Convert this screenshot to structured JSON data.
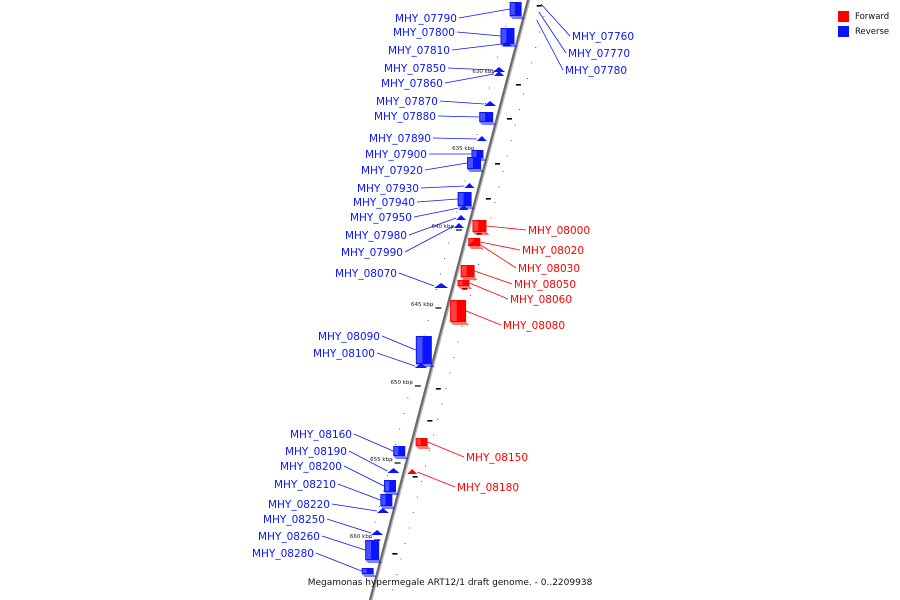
{
  "legend": {
    "forward": {
      "label": "Forward",
      "color": "#ff0000"
    },
    "reverse": {
      "label": "Reverse",
      "color": "#0a14ff"
    }
  },
  "caption": "Megamonas hypermegale ART12/1 draft genome. - 0..2209938",
  "ticks": [
    "630 kbp",
    "635 kbp",
    "640 kbp",
    "645 kbp",
    "650 kbp",
    "655 kbp",
    "660 kbp"
  ],
  "genes": {
    "reverse": [
      "MHY_07790",
      "MHY_07800",
      "MHY_07810",
      "MHY_07850",
      "MHY_07860",
      "MHY_07870",
      "MHY_07880",
      "MHY_07890",
      "MHY_07900",
      "MHY_07920",
      "MHY_07930",
      "MHY_07940",
      "MHY_07950",
      "MHY_07980",
      "MHY_07990",
      "MHY_08070",
      "MHY_08090",
      "MHY_08100",
      "MHY_08160",
      "MHY_08190",
      "MHY_08200",
      "MHY_08210",
      "MHY_08220",
      "MHY_08250",
      "MHY_08260",
      "MHY_08280"
    ],
    "forward": [
      "MHY_08000",
      "MHY_08020",
      "MHY_08030",
      "MHY_08050",
      "MHY_08060",
      "MHY_08080",
      "MHY_08150",
      "MHY_08180"
    ],
    "right_reverse": [
      "MHY_07760",
      "MHY_07770",
      "MHY_07780"
    ]
  }
}
